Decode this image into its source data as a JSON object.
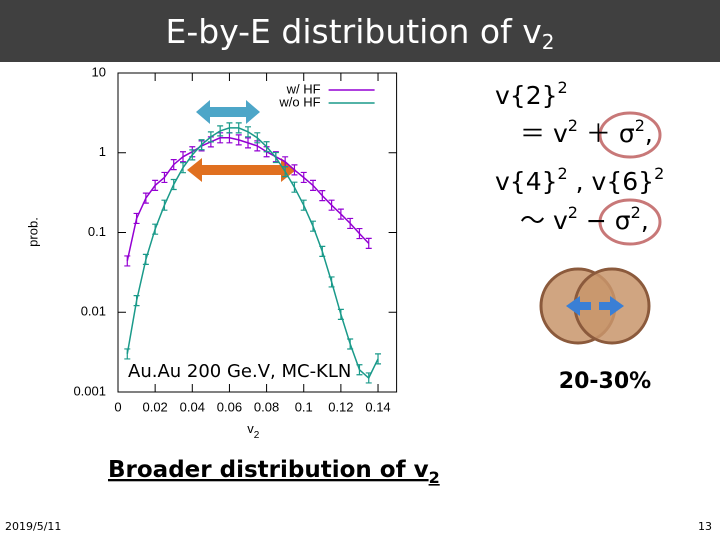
{
  "slide": {
    "title": "E-by-E distribution of v",
    "title_sub": "2",
    "equations": [
      [
        "v{2}",
        "2"
      ],
      [
        "＝ v",
        "2",
        " ＋ σ",
        "2",
        ","
      ],
      [
        "v{4}",
        "2",
        " , v{6}",
        "2"
      ],
      [
        "～ v",
        "2",
        " − σ",
        "2",
        ","
      ]
    ],
    "centrality": "20-30%",
    "conclusion": "Broader distribution of v",
    "conclusion_sub": "2",
    "date": "2019/5/11",
    "page": "13"
  },
  "chart_data": {
    "type": "line",
    "annotation": "Au.Au 200 Ge.V, MC-KLN",
    "xlabel": "v",
    "xlabel_sub": "2",
    "ylabel": "prob.",
    "xlim": [
      0,
      0.15
    ],
    "xticks": [
      0,
      0.02,
      0.04,
      0.06,
      0.08,
      0.1,
      0.12,
      0.14
    ],
    "ylim": [
      0.001,
      10
    ],
    "yticks": [
      10,
      1,
      0.1,
      0.01,
      0.001
    ],
    "log_y": true,
    "legend": "top-right",
    "x": [
      0.005,
      0.01,
      0.015,
      0.02,
      0.025,
      0.03,
      0.035,
      0.04,
      0.045,
      0.05,
      0.055,
      0.06,
      0.065,
      0.07,
      0.075,
      0.08,
      0.085,
      0.09,
      0.095,
      0.1,
      0.105,
      0.11,
      0.115,
      0.12,
      0.125,
      0.13,
      0.135,
      0.14
    ],
    "series": [
      {
        "name": "w/  HF",
        "color": "#9400d3",
        "values": [
          0.044,
          0.15,
          0.27,
          0.39,
          0.49,
          0.71,
          0.89,
          1.03,
          1.22,
          1.37,
          1.54,
          1.54,
          1.45,
          1.33,
          1.22,
          1.03,
          0.89,
          0.77,
          0.61,
          0.49,
          0.39,
          0.29,
          0.22,
          0.17,
          0.13,
          0.097,
          0.073,
          null
        ]
      },
      {
        "name": "w/o HF",
        "color": "#1a9a8a",
        "values": [
          0.003,
          0.014,
          0.046,
          0.11,
          0.22,
          0.4,
          0.65,
          0.94,
          1.26,
          1.58,
          1.88,
          2.05,
          2.05,
          1.83,
          1.54,
          1.19,
          0.87,
          0.58,
          0.37,
          0.22,
          0.12,
          0.058,
          0.024,
          0.0094,
          0.004,
          0.0019,
          0.0015,
          0.0026
        ]
      }
    ]
  }
}
